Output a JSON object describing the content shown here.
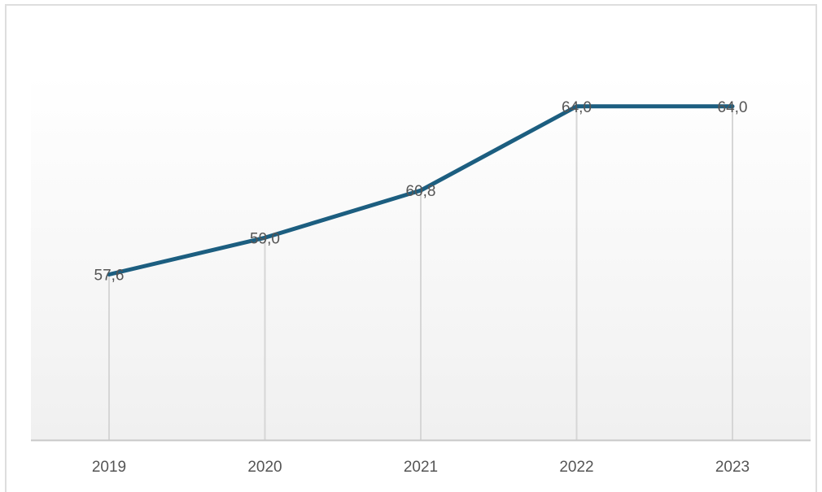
{
  "chart_data": {
    "type": "line",
    "categories": [
      "2019",
      "2020",
      "2021",
      "2022",
      "2023"
    ],
    "series": [
      {
        "values": [
          57.6,
          59.0,
          60.8,
          64.0,
          64.0
        ],
        "labels": [
          "57,6",
          "59,0",
          "60,8",
          "64,0",
          "64,0"
        ],
        "color": "#1c5e80"
      }
    ],
    "title": "",
    "xlabel": "",
    "ylabel": "",
    "ylim": [
      51.3,
      65.2
    ],
    "grid": "vertical drop lines at each category",
    "legend": "none"
  },
  "colors": {
    "line": "#1c5e80",
    "plot_bg_top": "#ffffff",
    "plot_bg_bottom": "#f0f0f0",
    "axis": "#c8c8c8",
    "drop_line": "#d6d6d6",
    "text": "#555555"
  }
}
